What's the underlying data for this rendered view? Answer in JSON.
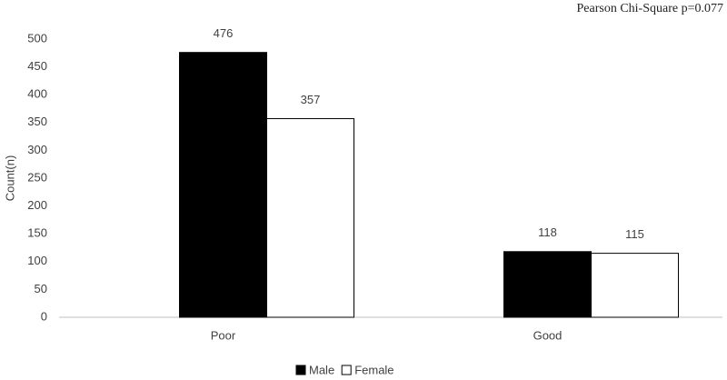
{
  "chart_data": {
    "type": "bar",
    "annotation": "Pearson Chi-Square p=0.077",
    "y_label": "Count(n)",
    "categories": [
      "Poor",
      "Good"
    ],
    "series": [
      {
        "name": "Male",
        "color": "#000000",
        "values": [
          476,
          118
        ]
      },
      {
        "name": "Female",
        "color": "#ffffff",
        "values": [
          357,
          115
        ]
      }
    ],
    "ylim": [
      0,
      500
    ],
    "yticks": [
      0,
      50,
      100,
      150,
      200,
      250,
      300,
      350,
      400,
      450,
      500
    ],
    "grid": false,
    "legend": "bottom"
  }
}
